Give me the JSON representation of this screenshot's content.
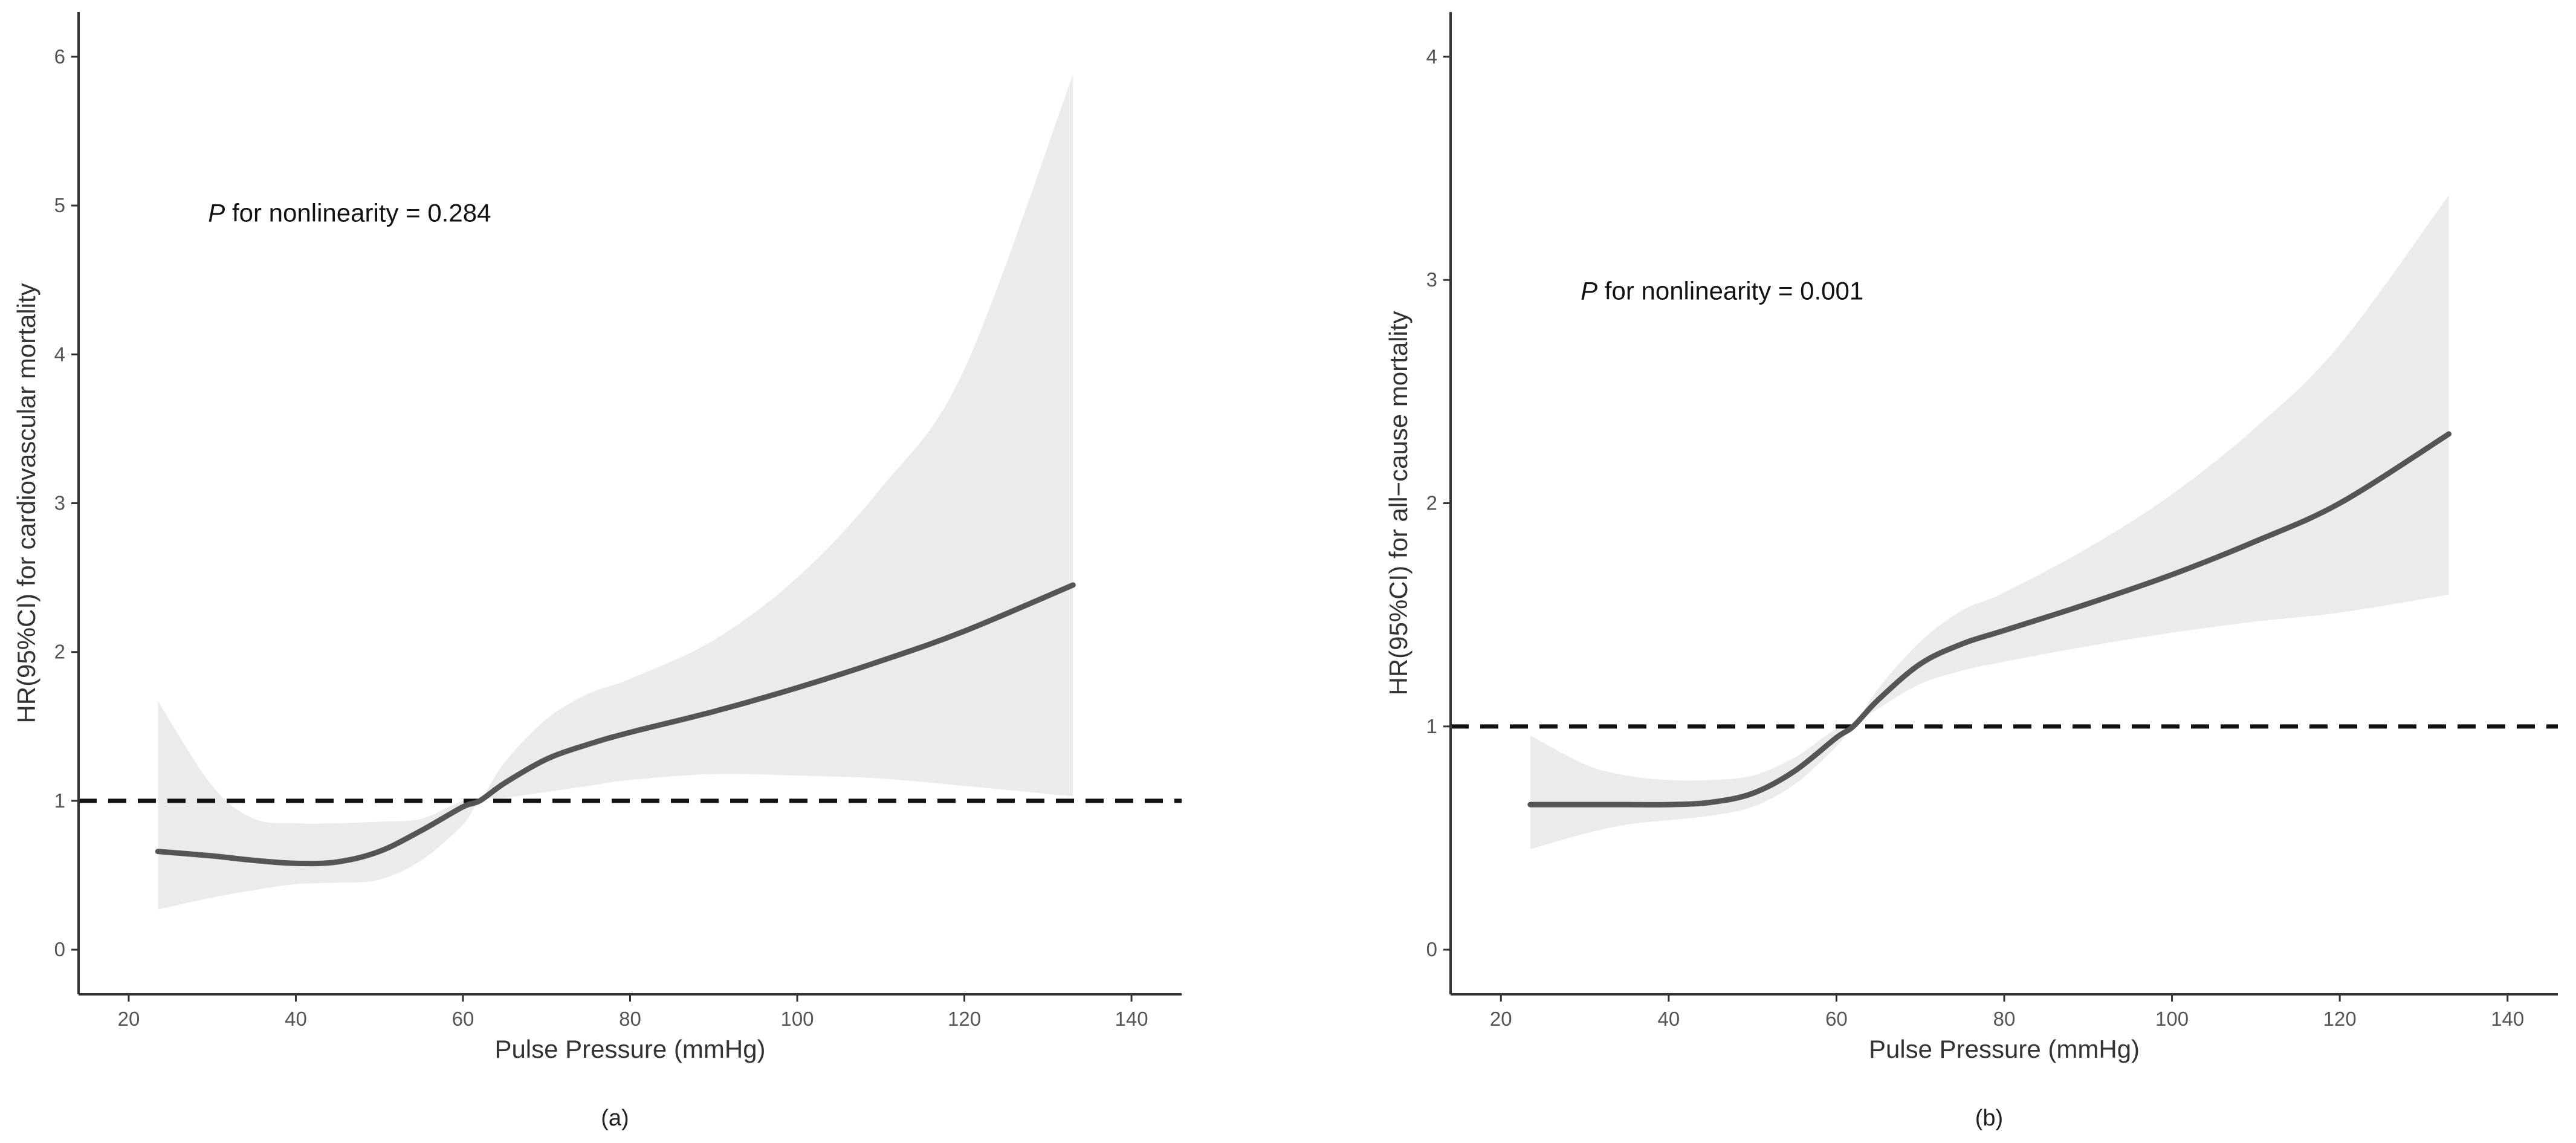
{
  "chart_data": [
    {
      "type": "line",
      "panel": "(a)",
      "caption": "(a)",
      "xlabel": "Pulse Pressure (mmHg)",
      "ylabel": "HR(95%CI) for cardiovascular mortality",
      "annotation": {
        "italic": "P",
        "rest": " for nonlinearity = 0.284"
      },
      "xlim": [
        14,
        146
      ],
      "ylim": [
        -0.3,
        6.3
      ],
      "xticks": [
        20,
        40,
        60,
        80,
        100,
        120,
        140
      ],
      "yticks": [
        0,
        1,
        2,
        3,
        4,
        5,
        6
      ],
      "reference_line": 1,
      "grid": false,
      "colors": {
        "line": "#555555",
        "band": "#ebebeb",
        "reference": "#111111"
      },
      "series": [
        {
          "name": "HR",
          "x": [
            23.5,
            30,
            35,
            40,
            45,
            50,
            55,
            60,
            62,
            65,
            70,
            75,
            80,
            90,
            100,
            110,
            120,
            133
          ],
          "y": [
            0.66,
            0.63,
            0.6,
            0.58,
            0.59,
            0.66,
            0.8,
            0.96,
            1.0,
            1.12,
            1.28,
            1.38,
            1.46,
            1.6,
            1.76,
            1.94,
            2.14,
            2.45
          ],
          "lower": [
            0.27,
            0.35,
            0.4,
            0.44,
            0.45,
            0.47,
            0.6,
            0.84,
            1.0,
            1.02,
            1.06,
            1.1,
            1.14,
            1.18,
            1.17,
            1.15,
            1.1,
            1.03
          ],
          "upper": [
            1.67,
            1.1,
            0.88,
            0.85,
            0.85,
            0.86,
            0.88,
            1.0,
            1.0,
            1.26,
            1.55,
            1.72,
            1.82,
            2.08,
            2.5,
            3.1,
            3.9,
            5.88
          ]
        }
      ]
    },
    {
      "type": "line",
      "panel": "(b)",
      "caption": "(b)",
      "xlabel": "Pulse Pressure (mmHg)",
      "ylabel": "HR(95%CI) for all−cause mortality",
      "annotation": {
        "italic": "P",
        "rest": " for nonlinearity = 0.001"
      },
      "xlim": [
        14,
        146
      ],
      "ylim": [
        -0.2,
        4.2
      ],
      "xticks": [
        20,
        40,
        60,
        80,
        100,
        120,
        140
      ],
      "yticks": [
        0,
        1,
        2,
        3,
        4
      ],
      "reference_line": 1,
      "grid": false,
      "colors": {
        "line": "#555555",
        "band": "#ebebeb",
        "reference": "#111111"
      },
      "series": [
        {
          "name": "HR",
          "x": [
            23.5,
            30,
            35,
            40,
            45,
            50,
            55,
            60,
            62,
            65,
            70,
            75,
            80,
            90,
            100,
            110,
            120,
            133
          ],
          "y": [
            0.65,
            0.65,
            0.65,
            0.65,
            0.66,
            0.7,
            0.8,
            0.95,
            1.0,
            1.12,
            1.28,
            1.37,
            1.43,
            1.55,
            1.68,
            1.83,
            2.0,
            2.31
          ],
          "lower": [
            0.45,
            0.52,
            0.56,
            0.58,
            0.6,
            0.64,
            0.74,
            0.91,
            1.0,
            1.08,
            1.19,
            1.25,
            1.29,
            1.36,
            1.42,
            1.47,
            1.51,
            1.59
          ],
          "upper": [
            0.96,
            0.83,
            0.78,
            0.76,
            0.76,
            0.78,
            0.86,
            0.99,
            1.0,
            1.17,
            1.38,
            1.52,
            1.6,
            1.8,
            2.04,
            2.34,
            2.71,
            3.38
          ]
        }
      ]
    }
  ]
}
